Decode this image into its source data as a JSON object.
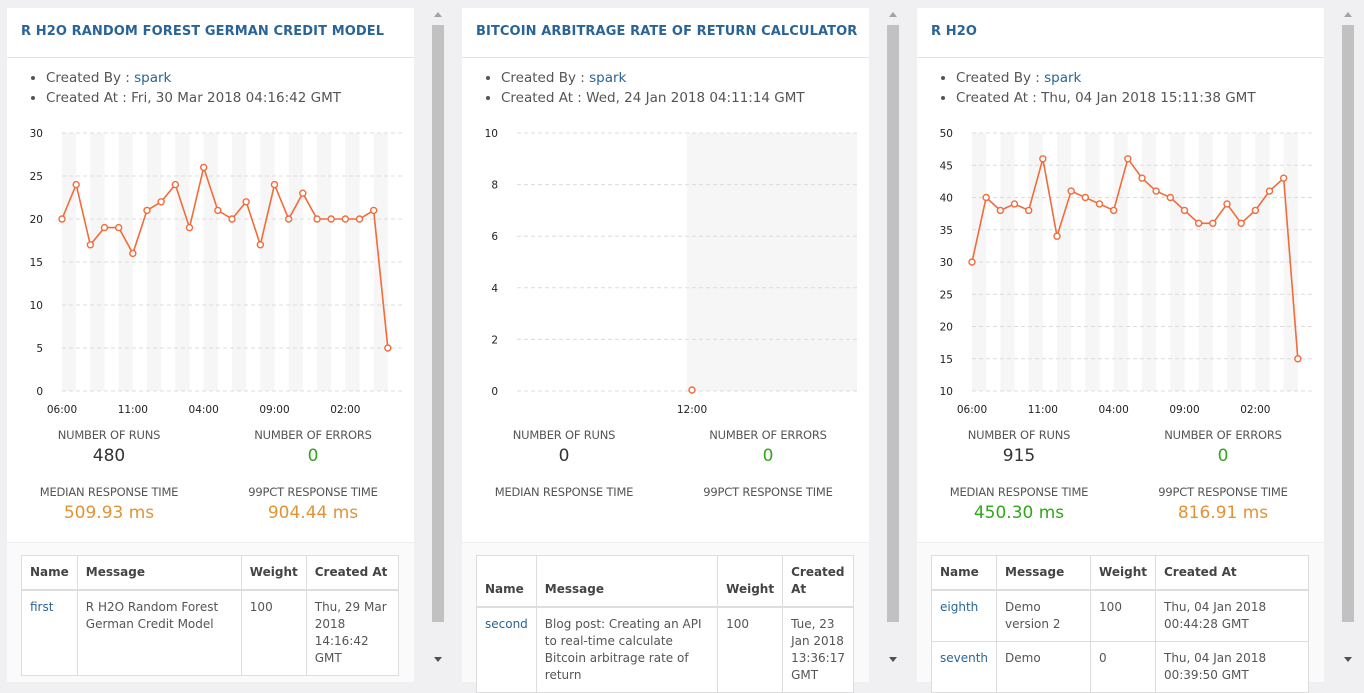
{
  "colors": {
    "title": "#2a6496",
    "line": "#f26b3a",
    "green": "#2fa81a",
    "orange": "#e39335"
  },
  "labels": {
    "created_by": "Created By : ",
    "created_at": "Created At : ",
    "runs": "NUMBER OF RUNS",
    "errors": "NUMBER OF ERRORS",
    "median": "MEDIAN RESPONSE TIME",
    "p99": "99PCT RESPONSE TIME"
  },
  "panels": [
    {
      "title": "R H2O RANDOM FOREST GERMAN CREDIT MODEL",
      "created_by": "spark",
      "created_at": "Fri, 30 Mar 2018 04:16:42 GMT",
      "runs": "480",
      "errors": "0",
      "median": "509.93 ms",
      "p99": "904.44 ms",
      "table": {
        "headers": [
          "Name",
          "Message",
          "Weight",
          "Created At"
        ],
        "rows": [
          [
            "first",
            "R H2O Random Forest German Credit Model",
            "100",
            "Thu, 29 Mar 2018 14:16:42 GMT"
          ]
        ]
      }
    },
    {
      "title": "BITCOIN ARBITRAGE RATE OF RETURN CALCULATOR",
      "created_by": "spark",
      "created_at": "Wed, 24 Jan 2018 04:11:14 GMT",
      "runs": "0",
      "errors": "0",
      "median": "",
      "p99": "",
      "table": {
        "headers": [
          "Name",
          "Message",
          "Weight",
          "Created At"
        ],
        "rows": [
          [
            "second",
            "Blog post: Creating an API to real-time calculate Bitcoin arbitrage rate of return",
            "100",
            "Tue, 23 Jan 2018 13:36:17 GMT"
          ]
        ]
      }
    },
    {
      "title": "R H2O",
      "created_by": "spark",
      "created_at": "Thu, 04 Jan 2018 15:11:38 GMT",
      "runs": "915",
      "errors": "0",
      "median": "450.30 ms",
      "p99": "816.91 ms",
      "table": {
        "headers": [
          "Name",
          "Message",
          "Weight",
          "Created At"
        ],
        "rows": [
          [
            "eighth",
            "Demo version 2",
            "100",
            "Thu, 04 Jan 2018 00:44:28 GMT"
          ],
          [
            "seventh",
            "Demo",
            "0",
            "Thu, 04 Jan 2018 00:39:50 GMT"
          ]
        ]
      }
    }
  ],
  "chart_data": [
    {
      "type": "line",
      "title": "",
      "ylim": [
        0,
        30
      ],
      "yticks": [
        "0",
        "5",
        "10",
        "15",
        "20",
        "25",
        "30"
      ],
      "xtick_labels": [
        "06:00",
        "11:00",
        "04:00",
        "09:00",
        "02:00"
      ],
      "series": [
        {
          "values": [
            20,
            24,
            17,
            19,
            19,
            16,
            21,
            22,
            24,
            19,
            26,
            21,
            20,
            22,
            17,
            24,
            20,
            23,
            20,
            20,
            20,
            20,
            21,
            5
          ]
        }
      ],
      "grid": true
    },
    {
      "type": "line",
      "title": "",
      "ylim": [
        0,
        10
      ],
      "yticks": [
        "0",
        "2",
        "4",
        "6",
        "8",
        "10"
      ],
      "xtick_labels": [
        "12:00"
      ],
      "series": [
        {
          "values": [
            0
          ]
        }
      ],
      "grid": true
    },
    {
      "type": "line",
      "title": "",
      "ylim": [
        10,
        50
      ],
      "yticks": [
        "10",
        "15",
        "20",
        "25",
        "30",
        "35",
        "40",
        "45",
        "50"
      ],
      "xtick_labels": [
        "06:00",
        "11:00",
        "04:00",
        "09:00",
        "02:00"
      ],
      "series": [
        {
          "values": [
            30,
            40,
            38,
            39,
            38,
            46,
            34,
            41,
            40,
            39,
            38,
            46,
            43,
            41,
            40,
            38,
            36,
            36,
            39,
            36,
            38,
            41,
            43,
            15
          ]
        }
      ],
      "grid": true
    }
  ]
}
